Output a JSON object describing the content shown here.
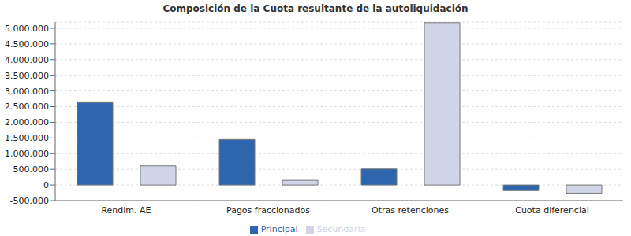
{
  "chart_data": {
    "type": "bar",
    "title": "Composición de la Cuota resultante de la autoliquidación",
    "categories": [
      "Rendim. AE",
      "Pagos fraccionados",
      "Otras retenciones",
      "Cuota diferencial"
    ],
    "series": [
      {
        "name": "Principal",
        "color": "#2e66ad",
        "values": [
          2630000,
          1450000,
          510000,
          -180000
        ]
      },
      {
        "name": "Secundaria",
        "color": "#d0d5e8",
        "values": [
          610000,
          150000,
          5180000,
          -260000
        ]
      }
    ],
    "ylim": [
      -500000,
      5200000
    ],
    "yticks": [
      {
        "value": -500000,
        "label": "-500.000"
      },
      0,
      {
        "value": 500000,
        "label": "500.000"
      },
      {
        "value": 1000000,
        "label": "1.000.000"
      },
      {
        "value": 1500000,
        "label": "1.500.000"
      },
      {
        "value": 2000000,
        "label": "2.000.000"
      },
      {
        "value": 2500000,
        "label": "2.500.000"
      },
      {
        "value": 3000000,
        "label": "3.000.000"
      },
      {
        "value": 3500000,
        "label": "3.500.000"
      },
      {
        "value": 4000000,
        "label": "4.000.000"
      },
      {
        "value": 4500000,
        "label": "4.500.000"
      },
      {
        "value": 5000000,
        "label": "5.000.000"
      }
    ],
    "grid": true,
    "legend": "bottom"
  }
}
